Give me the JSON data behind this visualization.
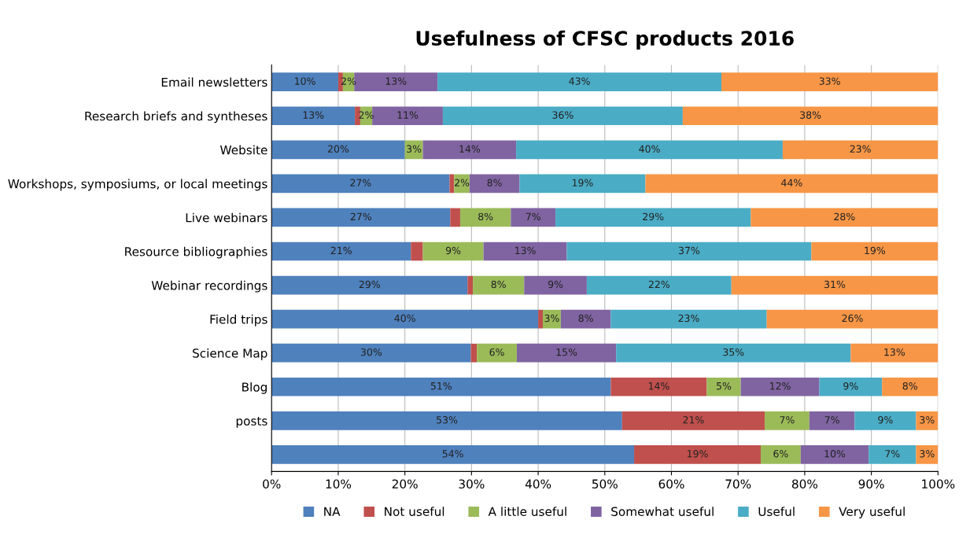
{
  "chart_data": {
    "type": "bar",
    "orientation": "horizontal",
    "stacked": true,
    "title": "Usefulness of CFSC products 2016",
    "categories": [
      "Email newsletters",
      "Research briefs and syntheses",
      "Website",
      "Workshops, symposiums, or local meetings",
      "Live webinars",
      "Resource bibliographies",
      "Webinar recordings",
      "Field trips",
      "Science Map",
      "Blog",
      "posts",
      null
    ],
    "series": [
      {
        "name": "NA",
        "color": "#4f81bd",
        "values": [
          10.0,
          12.5,
          20.0,
          26.7,
          26.8,
          20.9,
          29.4,
          40.0,
          29.9,
          50.9,
          52.6,
          54.4
        ],
        "value_labels": [
          "10%",
          "13%",
          "20%",
          "27%",
          "27%",
          "21%",
          "29%",
          "40%",
          "30%",
          "51%",
          "53%",
          "54%"
        ]
      },
      {
        "name": "Not useful",
        "color": "#c0504d",
        "values": [
          0.7,
          0.8,
          0,
          0.7,
          1.5,
          1.8,
          0.8,
          0.7,
          0.9,
          14.4,
          21.4,
          19.0
        ],
        "value_labels": [
          null,
          null,
          null,
          null,
          null,
          null,
          null,
          null,
          null,
          "14%",
          "21%",
          "19%"
        ]
      },
      {
        "name": "A little useful",
        "color": "#9bbb59",
        "values": [
          1.7,
          1.8,
          2.7,
          2.3,
          7.6,
          9.1,
          7.7,
          2.7,
          6.0,
          5.1,
          6.7,
          6.0
        ],
        "value_labels": [
          "2%",
          "2%",
          "3%",
          "2%",
          "8%",
          "9%",
          "8%",
          "3%",
          "6%",
          "5%",
          "7%",
          "6%"
        ]
      },
      {
        "name": "Somewhat useful",
        "color": "#8064a2",
        "values": [
          12.5,
          10.6,
          14.0,
          7.5,
          6.7,
          12.5,
          9.4,
          7.5,
          14.9,
          11.8,
          6.8,
          10.2
        ],
        "value_labels": [
          "13%",
          "11%",
          "14%",
          "8%",
          "7%",
          "13%",
          "9%",
          "8%",
          "15%",
          "12%",
          "7%",
          "10%"
        ]
      },
      {
        "name": "Useful",
        "color": "#4bacc6",
        "values": [
          42.6,
          36.0,
          40.0,
          18.9,
          29.3,
          36.7,
          21.7,
          23.4,
          35.2,
          9.4,
          9.2,
          7.1
        ],
        "value_labels": [
          "43%",
          "36%",
          "40%",
          "19%",
          "29%",
          "37%",
          "22%",
          "23%",
          "35%",
          "9%",
          "9%",
          "7%"
        ]
      },
      {
        "name": "Very useful",
        "color": "#f79646",
        "values": [
          32.5,
          38.3,
          23.3,
          43.9,
          28.1,
          19.0,
          31.0,
          25.7,
          13.1,
          8.4,
          3.3,
          3.3
        ],
        "value_labels": [
          "33%",
          "38%",
          "23%",
          "44%",
          "28%",
          "19%",
          "31%",
          "26%",
          "13%",
          "8%",
          "3%",
          "3%"
        ]
      }
    ],
    "xlim": [
      0,
      100
    ],
    "xticks": [
      {
        "value": 0,
        "label": "0%"
      },
      {
        "value": 10,
        "label": "10%"
      },
      {
        "value": 20,
        "label": "20%"
      },
      {
        "value": 30,
        "label": "30%"
      },
      {
        "value": 40,
        "label": "40%"
      },
      {
        "value": 50,
        "label": "50%"
      },
      {
        "value": 60,
        "label": "60%"
      },
      {
        "value": 70,
        "label": "70%"
      },
      {
        "value": 80,
        "label": "80%"
      },
      {
        "value": 90,
        "label": "90%"
      },
      {
        "value": 100,
        "label": "100%"
      }
    ],
    "grid": "x",
    "legend": "bottom"
  }
}
